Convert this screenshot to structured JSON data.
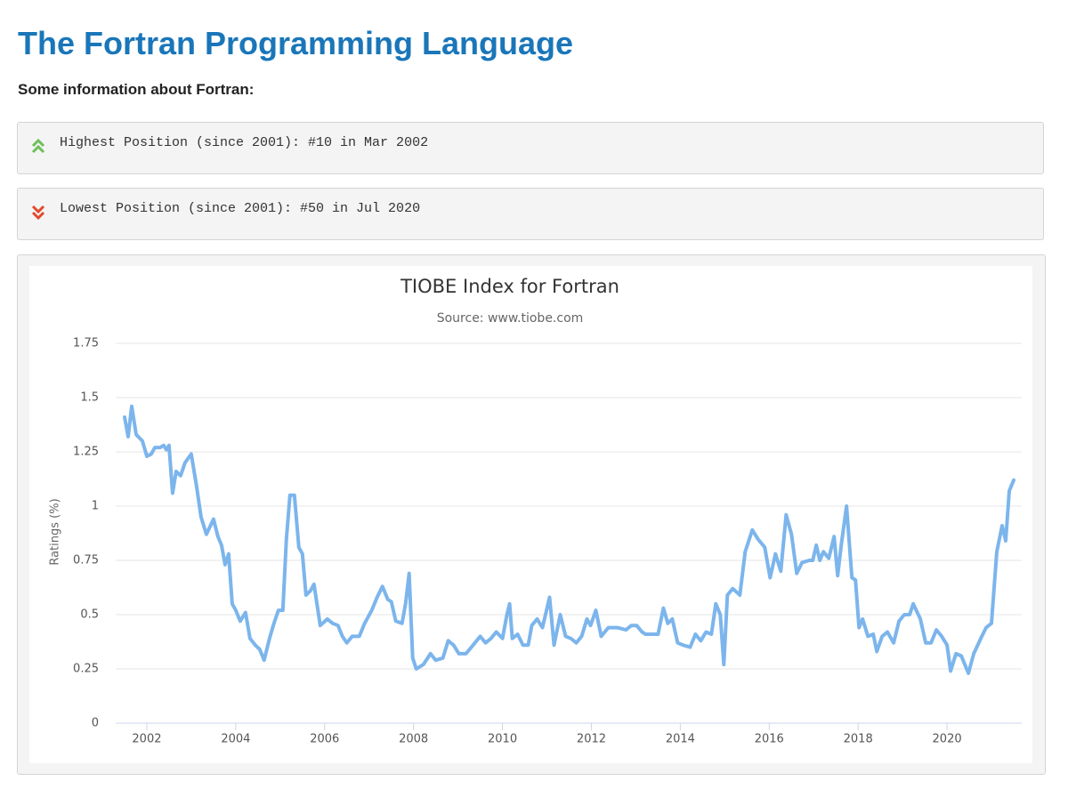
{
  "header": {
    "title": "The Fortran Programming Language",
    "subtitle": "Some information about Fortran:"
  },
  "highlights": [
    "Highest Position (since 2001): #10 in Mar 2002",
    "Lowest Position (since 2001): #50 in Jul 2020"
  ],
  "chart_data": {
    "type": "line",
    "title": "TIOBE Index for Fortran",
    "subtitle": "Source: www.tiobe.com",
    "y_label": "Ratings (%)",
    "color": "#7cb5ec",
    "grid": true,
    "xlim": [
      2001.3,
      2021.68
    ],
    "ylim": [
      0,
      1.75
    ],
    "xticks": [
      2002,
      2004,
      2006,
      2008,
      2010,
      2012,
      2014,
      2016,
      2018,
      2020
    ],
    "yticks": [
      0,
      0.25,
      0.5,
      0.75,
      1,
      1.25,
      1.5,
      1.75
    ],
    "x": [
      2001.5,
      2001.58,
      2001.66,
      2001.76,
      2001.9,
      2002.0,
      2002.1,
      2002.18,
      2002.3,
      2002.38,
      2002.44,
      2002.5,
      2002.58,
      2002.66,
      2002.76,
      2002.86,
      2003.0,
      2003.12,
      2003.22,
      2003.34,
      2003.5,
      2003.6,
      2003.68,
      2003.76,
      2003.84,
      2003.92,
      2004.0,
      2004.1,
      2004.22,
      2004.32,
      2004.44,
      2004.54,
      2004.64,
      2004.76,
      2004.86,
      2004.96,
      2005.06,
      2005.14,
      2005.22,
      2005.32,
      2005.42,
      2005.5,
      2005.58,
      2005.68,
      2005.76,
      2005.9,
      2006.06,
      2006.18,
      2006.3,
      2006.4,
      2006.5,
      2006.62,
      2006.78,
      2006.9,
      2007.06,
      2007.18,
      2007.3,
      2007.42,
      2007.5,
      2007.6,
      2007.74,
      2007.82,
      2007.9,
      2007.98,
      2008.06,
      2008.22,
      2008.38,
      2008.5,
      2008.66,
      2008.78,
      2008.9,
      2009.02,
      2009.18,
      2009.34,
      2009.5,
      2009.62,
      2009.74,
      2009.86,
      2010.0,
      2010.1,
      2010.16,
      2010.22,
      2010.34,
      2010.46,
      2010.58,
      2010.66,
      2010.78,
      2010.9,
      2011.06,
      2011.16,
      2011.3,
      2011.42,
      2011.54,
      2011.66,
      2011.78,
      2011.9,
      2011.98,
      2012.1,
      2012.22,
      2012.38,
      2012.58,
      2012.78,
      2012.9,
      2013.02,
      2013.14,
      2013.22,
      2013.5,
      2013.62,
      2013.72,
      2013.82,
      2013.94,
      2014.06,
      2014.22,
      2014.34,
      2014.46,
      2014.58,
      2014.7,
      2014.8,
      2014.9,
      2014.98,
      2015.06,
      2015.18,
      2015.34,
      2015.46,
      2015.62,
      2015.74,
      2015.9,
      2016.02,
      2016.14,
      2016.26,
      2016.38,
      2016.5,
      2016.62,
      2016.74,
      2016.9,
      2016.98,
      2017.06,
      2017.14,
      2017.22,
      2017.34,
      2017.46,
      2017.54,
      2017.62,
      2017.74,
      2017.86,
      2017.94,
      2018.02,
      2018.1,
      2018.22,
      2018.34,
      2018.42,
      2018.54,
      2018.66,
      2018.8,
      2018.92,
      2019.04,
      2019.16,
      2019.24,
      2019.4,
      2019.52,
      2019.64,
      2019.76,
      2019.88,
      2020.0,
      2020.08,
      2020.2,
      2020.32,
      2020.48,
      2020.6,
      2020.76,
      2020.88,
      2021.0,
      2021.12,
      2021.24,
      2021.32,
      2021.4,
      2021.5
    ],
    "values": [
      1.41,
      1.32,
      1.46,
      1.33,
      1.3,
      1.23,
      1.24,
      1.27,
      1.27,
      1.28,
      1.26,
      1.28,
      1.06,
      1.16,
      1.14,
      1.2,
      1.24,
      1.09,
      0.95,
      0.87,
      0.94,
      0.86,
      0.82,
      0.73,
      0.78,
      0.55,
      0.52,
      0.47,
      0.51,
      0.39,
      0.36,
      0.34,
      0.29,
      0.39,
      0.46,
      0.52,
      0.52,
      0.85,
      1.05,
      1.05,
      0.81,
      0.78,
      0.59,
      0.61,
      0.64,
      0.45,
      0.48,
      0.46,
      0.45,
      0.4,
      0.37,
      0.4,
      0.4,
      0.46,
      0.52,
      0.58,
      0.63,
      0.57,
      0.56,
      0.47,
      0.46,
      0.55,
      0.69,
      0.3,
      0.25,
      0.27,
      0.32,
      0.29,
      0.3,
      0.38,
      0.36,
      0.32,
      0.32,
      0.36,
      0.4,
      0.37,
      0.39,
      0.42,
      0.39,
      0.5,
      0.55,
      0.39,
      0.41,
      0.36,
      0.36,
      0.45,
      0.48,
      0.44,
      0.58,
      0.36,
      0.5,
      0.4,
      0.39,
      0.37,
      0.4,
      0.48,
      0.45,
      0.52,
      0.4,
      0.44,
      0.44,
      0.43,
      0.45,
      0.45,
      0.42,
      0.41,
      0.41,
      0.53,
      0.46,
      0.48,
      0.37,
      0.36,
      0.35,
      0.41,
      0.38,
      0.42,
      0.41,
      0.55,
      0.5,
      0.27,
      0.59,
      0.62,
      0.59,
      0.79,
      0.89,
      0.85,
      0.81,
      0.67,
      0.78,
      0.7,
      0.96,
      0.87,
      0.69,
      0.74,
      0.75,
      0.75,
      0.82,
      0.75,
      0.79,
      0.76,
      0.86,
      0.68,
      0.82,
      1.0,
      0.67,
      0.66,
      0.44,
      0.48,
      0.4,
      0.41,
      0.33,
      0.4,
      0.42,
      0.37,
      0.47,
      0.5,
      0.5,
      0.55,
      0.48,
      0.37,
      0.37,
      0.43,
      0.4,
      0.36,
      0.24,
      0.32,
      0.31,
      0.23,
      0.32,
      0.39,
      0.44,
      0.46,
      0.79,
      0.91,
      0.84,
      1.07,
      1.12
    ]
  }
}
